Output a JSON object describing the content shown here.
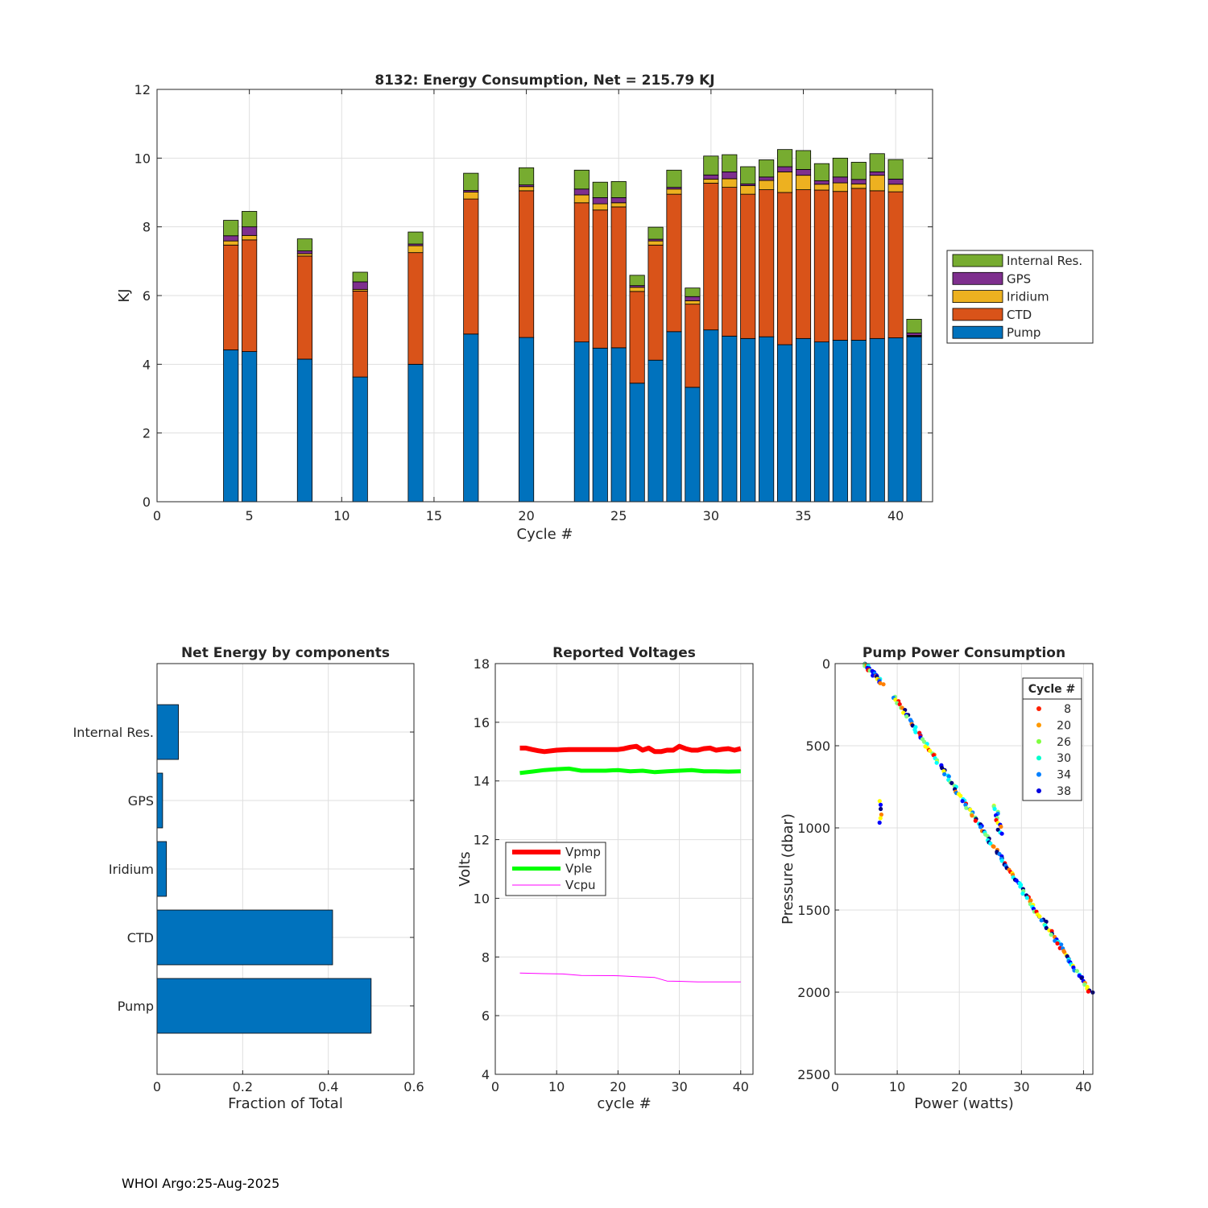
{
  "footer": "WHOI Argo:25-Aug-2025",
  "colors": {
    "pump": "#0072BD",
    "ctd": "#D95319",
    "iridium": "#EDB120",
    "gps": "#7E2F8E",
    "internal": "#77AC30",
    "vpmp": "#FF0000",
    "vple": "#00FF00",
    "vcpu": "#FF00FF",
    "grid": "#DFDFDF",
    "axis": "#262626"
  },
  "chart_data": [
    {
      "id": "energy",
      "type": "bar",
      "stacked": true,
      "title": "8132: Energy Consumption,  Net = 215.79 KJ",
      "xlabel": "Cycle #",
      "ylabel": "KJ",
      "xlim": [
        0,
        42
      ],
      "ylim": [
        0,
        12
      ],
      "xticks": [
        0,
        5,
        10,
        15,
        20,
        25,
        30,
        35,
        40
      ],
      "yticks": [
        0,
        2,
        4,
        6,
        8,
        10,
        12
      ],
      "legend_position": "outside-right",
      "legend": [
        "Internal Res.",
        "GPS",
        "Iridium",
        "CTD",
        "Pump"
      ],
      "categories": [
        4,
        5,
        8,
        11,
        14,
        17,
        20,
        23,
        24,
        25,
        26,
        27,
        28,
        29,
        30,
        31,
        32,
        33,
        34,
        35,
        36,
        37,
        38,
        39,
        40,
        41
      ],
      "series": [
        {
          "name": "Pump",
          "color_key": "pump",
          "values": [
            4.42,
            4.37,
            4.15,
            3.63,
            4.0,
            4.88,
            4.78,
            4.65,
            4.47,
            4.48,
            3.45,
            4.12,
            4.95,
            3.33,
            5.0,
            4.82,
            4.75,
            4.8,
            4.57,
            4.75,
            4.65,
            4.7,
            4.7,
            4.75,
            4.77,
            4.8
          ]
        },
        {
          "name": "CTD",
          "color_key": "ctd",
          "values": [
            3.05,
            3.25,
            3.0,
            2.5,
            3.25,
            3.93,
            4.27,
            4.05,
            4.02,
            4.1,
            2.67,
            3.35,
            4.0,
            2.42,
            4.27,
            4.33,
            4.2,
            4.28,
            4.43,
            4.33,
            4.42,
            4.33,
            4.42,
            4.3,
            4.25,
            0.02
          ]
        },
        {
          "name": "Iridium",
          "color_key": "iridium",
          "values": [
            0.12,
            0.13,
            0.07,
            0.05,
            0.2,
            0.2,
            0.12,
            0.23,
            0.18,
            0.12,
            0.12,
            0.12,
            0.15,
            0.1,
            0.12,
            0.25,
            0.25,
            0.27,
            0.6,
            0.42,
            0.17,
            0.25,
            0.13,
            0.45,
            0.22,
            0.02
          ]
        },
        {
          "name": "GPS",
          "color_key": "gps",
          "values": [
            0.15,
            0.25,
            0.08,
            0.22,
            0.05,
            0.05,
            0.05,
            0.17,
            0.18,
            0.15,
            0.05,
            0.05,
            0.05,
            0.12,
            0.12,
            0.2,
            0.05,
            0.1,
            0.15,
            0.17,
            0.1,
            0.17,
            0.13,
            0.1,
            0.15,
            0.07
          ]
        },
        {
          "name": "Internal Res.",
          "color_key": "internal",
          "values": [
            0.45,
            0.45,
            0.35,
            0.28,
            0.35,
            0.5,
            0.5,
            0.55,
            0.45,
            0.47,
            0.3,
            0.35,
            0.5,
            0.25,
            0.55,
            0.5,
            0.5,
            0.5,
            0.5,
            0.55,
            0.5,
            0.55,
            0.5,
            0.53,
            0.57,
            0.4
          ]
        }
      ]
    },
    {
      "id": "fraction",
      "type": "barh",
      "title": "Net Energy by components",
      "xlabel": "Fraction of Total",
      "xlim": [
        0,
        0.6
      ],
      "xticks": [
        0,
        0.2,
        0.4,
        0.6
      ],
      "xtick_labels": [
        "0",
        "0.2",
        "0.4",
        "0.6"
      ],
      "categories": [
        "Pump",
        "CTD",
        "Iridium",
        "GPS",
        "Internal Res."
      ],
      "values": [
        0.5,
        0.41,
        0.022,
        0.013,
        0.05
      ],
      "color_key": "pump"
    },
    {
      "id": "voltages",
      "type": "line",
      "title": "Reported Voltages",
      "xlabel": "cycle #",
      "ylabel": "Volts",
      "xlim": [
        0,
        42
      ],
      "ylim": [
        4,
        18
      ],
      "xticks": [
        0,
        10,
        20,
        30,
        40
      ],
      "yticks": [
        4,
        6,
        8,
        10,
        12,
        14,
        16,
        18
      ],
      "legend_position": "middle-left",
      "series": [
        {
          "name": "Vpmp",
          "color_key": "vpmp",
          "width": 6,
          "x": [
            4,
            5,
            6,
            7,
            8,
            10,
            12,
            14,
            16,
            18,
            20,
            21,
            22,
            23,
            24,
            25,
            26,
            27,
            28,
            29,
            30,
            31,
            32,
            33,
            34,
            35,
            36,
            37,
            38,
            39,
            40
          ],
          "y": [
            15.12,
            15.12,
            15.07,
            15.03,
            15.0,
            15.05,
            15.07,
            15.07,
            15.07,
            15.07,
            15.07,
            15.1,
            15.15,
            15.18,
            15.05,
            15.12,
            15.0,
            15.0,
            15.05,
            15.05,
            15.18,
            15.1,
            15.05,
            15.05,
            15.1,
            15.12,
            15.05,
            15.08,
            15.1,
            15.05,
            15.1
          ]
        },
        {
          "name": "Vple",
          "color_key": "vple",
          "width": 5,
          "x": [
            4,
            6,
            8,
            10,
            12,
            14,
            16,
            18,
            20,
            22,
            24,
            26,
            28,
            30,
            32,
            34,
            36,
            38,
            40
          ],
          "y": [
            14.27,
            14.32,
            14.37,
            14.4,
            14.42,
            14.35,
            14.35,
            14.35,
            14.37,
            14.33,
            14.35,
            14.3,
            14.33,
            14.35,
            14.37,
            14.33,
            14.33,
            14.32,
            14.33
          ]
        },
        {
          "name": "Vcpu",
          "color_key": "vcpu",
          "width": 1,
          "x": [
            4,
            8,
            11,
            14,
            20,
            23,
            26,
            28,
            30,
            33,
            36,
            40
          ],
          "y": [
            7.45,
            7.43,
            7.42,
            7.37,
            7.36,
            7.33,
            7.3,
            7.18,
            7.17,
            7.15,
            7.15,
            7.15
          ]
        }
      ]
    },
    {
      "id": "pump_power",
      "type": "scatter",
      "title": "Pump Power Consumption",
      "xlabel": "Power (watts)",
      "ylabel": "Pressure (dbar)",
      "xlim": [
        0,
        41.5
      ],
      "ylim": [
        0,
        2500
      ],
      "y_reversed": true,
      "xticks": [
        0,
        10,
        20,
        30,
        40
      ],
      "yticks": [
        0,
        500,
        1000,
        1500,
        2000,
        2500
      ],
      "legend_title": "Cycle #",
      "legend_position": "top-right",
      "legend": [
        {
          "label": "8",
          "color": "#FF2000"
        },
        {
          "label": "20",
          "color": "#FF9900"
        },
        {
          "label": "26",
          "color": "#7FFF3F"
        },
        {
          "label": "30",
          "color": "#00FFCC"
        },
        {
          "label": "34",
          "color": "#0080FF"
        },
        {
          "label": "38",
          "color": "#0000E0"
        }
      ],
      "colormap": [
        "#00007F",
        "#0000FF",
        "#007FFF",
        "#00FFFF",
        "#7FFF7F",
        "#FFFF00",
        "#FF7F00",
        "#FF0000"
      ],
      "trend_segments": [
        {
          "x0": 4.8,
          "y0": 0,
          "x1": 7.5,
          "y1": 120,
          "n": 26
        },
        {
          "x0": 9.5,
          "y0": 200,
          "x1": 41.2,
          "y1": 2005,
          "n": 170
        },
        {
          "x0": 7.0,
          "y0": 840,
          "x1": 7.4,
          "y1": 965,
          "n": 6
        },
        {
          "x0": 25.8,
          "y0": 860,
          "x1": 26.6,
          "y1": 1040,
          "n": 14
        }
      ]
    }
  ]
}
